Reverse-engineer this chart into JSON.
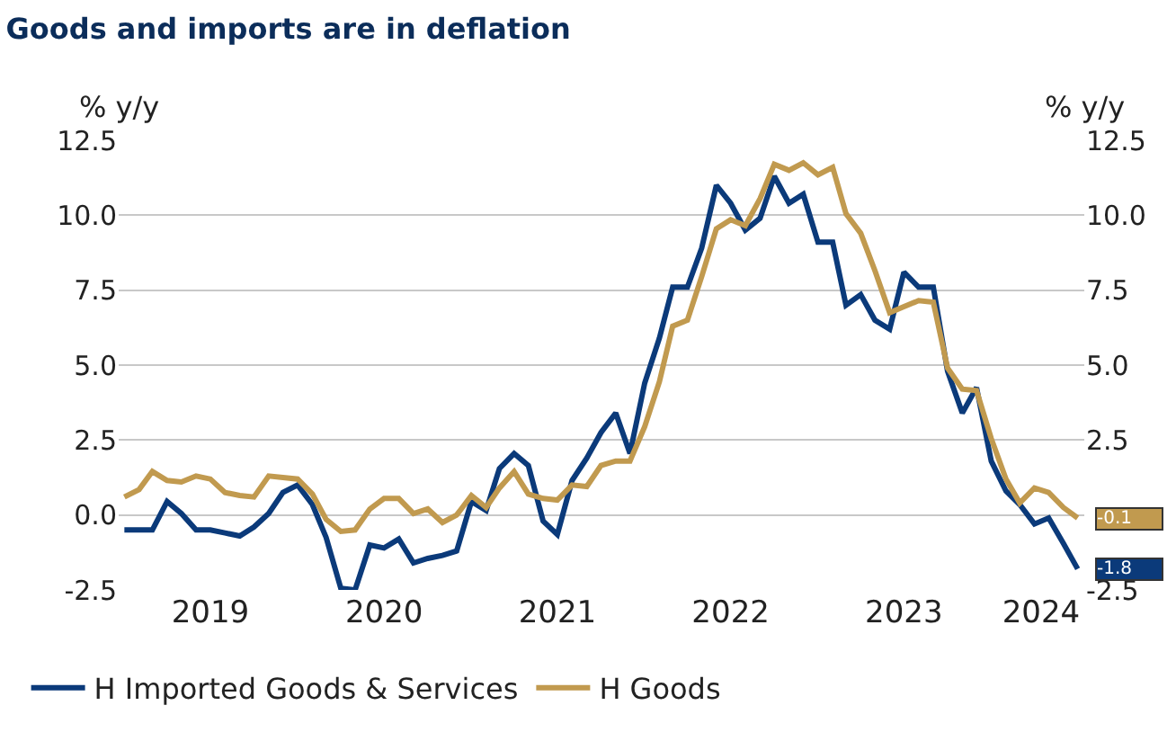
{
  "chart_data": {
    "type": "line",
    "title": "Goods and imports are in deflation",
    "ylabel": "% y/y",
    "y2label": "% y/y",
    "x": [
      "2019-01",
      "2019-02",
      "2019-03",
      "2019-04",
      "2019-05",
      "2019-06",
      "2019-07",
      "2019-08",
      "2019-09",
      "2019-10",
      "2019-11",
      "2019-12",
      "2020-01",
      "2020-02",
      "2020-03",
      "2020-04",
      "2020-05",
      "2020-06",
      "2020-07",
      "2020-08",
      "2020-09",
      "2020-10",
      "2020-11",
      "2020-12",
      "2021-01",
      "2021-02",
      "2021-03",
      "2021-04",
      "2021-05",
      "2021-06",
      "2021-07",
      "2021-08",
      "2021-09",
      "2021-10",
      "2021-11",
      "2021-12",
      "2022-01",
      "2022-02",
      "2022-03",
      "2022-04",
      "2022-05",
      "2022-06",
      "2022-07",
      "2022-08",
      "2022-09",
      "2022-10",
      "2022-11",
      "2022-12",
      "2023-01",
      "2023-02",
      "2023-03",
      "2023-04",
      "2023-05",
      "2023-06",
      "2023-07",
      "2023-08",
      "2023-09",
      "2023-10",
      "2023-11",
      "2023-12",
      "2024-01",
      "2024-02",
      "2024-03",
      "2024-04",
      "2024-05",
      "2024-06",
      "2024-07"
    ],
    "series": [
      {
        "name": "H Imported Goods & Services",
        "color": "#0b3a7a",
        "values": [
          -0.5,
          -0.5,
          -0.5,
          0.45,
          0.05,
          -0.5,
          -0.5,
          -0.6,
          -0.7,
          -0.4,
          0.05,
          0.75,
          1.0,
          0.35,
          -0.75,
          -2.45,
          -2.5,
          -1.0,
          -1.1,
          -0.8,
          -1.6,
          -1.45,
          -1.35,
          -1.2,
          0.45,
          0.15,
          1.55,
          2.05,
          1.65,
          -0.2,
          -0.65,
          1.15,
          1.9,
          2.75,
          3.4,
          2.05,
          4.4,
          5.9,
          7.6,
          7.6,
          8.9,
          11.0,
          10.4,
          9.5,
          9.9,
          11.3,
          10.4,
          10.7,
          9.1,
          9.1,
          7.0,
          7.35,
          6.5,
          6.2,
          8.1,
          7.6,
          7.6,
          4.8,
          3.4,
          4.25,
          1.8,
          0.8,
          0.35,
          -0.3,
          -0.1,
          -0.95,
          -1.8
        ]
      },
      {
        "name": "H Goods",
        "color": "#c19a4f",
        "values": [
          0.6,
          0.85,
          1.45,
          1.15,
          1.1,
          1.3,
          1.2,
          0.75,
          0.65,
          0.6,
          1.3,
          1.25,
          1.2,
          0.7,
          -0.15,
          -0.55,
          -0.5,
          0.2,
          0.55,
          0.55,
          0.05,
          0.2,
          -0.25,
          0.0,
          0.65,
          0.25,
          0.9,
          1.45,
          0.7,
          0.55,
          0.5,
          1.0,
          0.95,
          1.65,
          1.8,
          1.8,
          2.95,
          4.45,
          6.3,
          6.5,
          7.95,
          9.55,
          9.85,
          9.65,
          10.55,
          11.7,
          11.5,
          11.75,
          11.35,
          11.6,
          10.05,
          9.4,
          8.15,
          6.75,
          6.95,
          7.15,
          7.1,
          4.9,
          4.2,
          4.15,
          2.55,
          1.2,
          0.4,
          0.9,
          0.75,
          0.25,
          -0.1
        ]
      }
    ],
    "xlim": [
      "2018-12-20",
      "2024-07-15"
    ],
    "xticks": [
      {
        "value": "2019-07-01",
        "label": "2019"
      },
      {
        "value": "2020-07-01",
        "label": "2020"
      },
      {
        "value": "2021-07-01",
        "label": "2021"
      },
      {
        "value": "2022-07-01",
        "label": "2022"
      },
      {
        "value": "2023-07-01",
        "label": "2023"
      },
      {
        "value": "2024-04-15",
        "label": "2024"
      }
    ],
    "ylim": [
      -2.5,
      12.5
    ],
    "yticks": [
      {
        "value": -2.5,
        "label": "-2.5"
      },
      {
        "value": 0,
        "label": "0.0"
      },
      {
        "value": 2.5,
        "label": "2.5"
      },
      {
        "value": 5,
        "label": "5.0"
      },
      {
        "value": 7.5,
        "label": "7.5"
      },
      {
        "value": 10,
        "label": "10.0"
      },
      {
        "value": 12.5,
        "label": "12.5"
      }
    ],
    "y2lim": [
      -2.5,
      12.5
    ],
    "y2ticks": [
      {
        "value": -2.5,
        "label": "-2.5"
      },
      {
        "value": 0,
        "label": null
      },
      {
        "value": 2.5,
        "label": "2.5"
      },
      {
        "value": 5,
        "label": "5.0"
      },
      {
        "value": 7.5,
        "label": "7.5"
      },
      {
        "value": 10,
        "label": "10.0"
      },
      {
        "value": 12.5,
        "label": "12.5"
      }
    ],
    "annotations": [
      {
        "text": "-1.8",
        "x": "2024-07",
        "y": -1.8
      },
      {
        "text": "-0.1",
        "x": "2024-07",
        "y": -0.1
      }
    ],
    "grid": "y",
    "legend": "bottom",
    "marker": "none",
    "line_style": "solid"
  }
}
